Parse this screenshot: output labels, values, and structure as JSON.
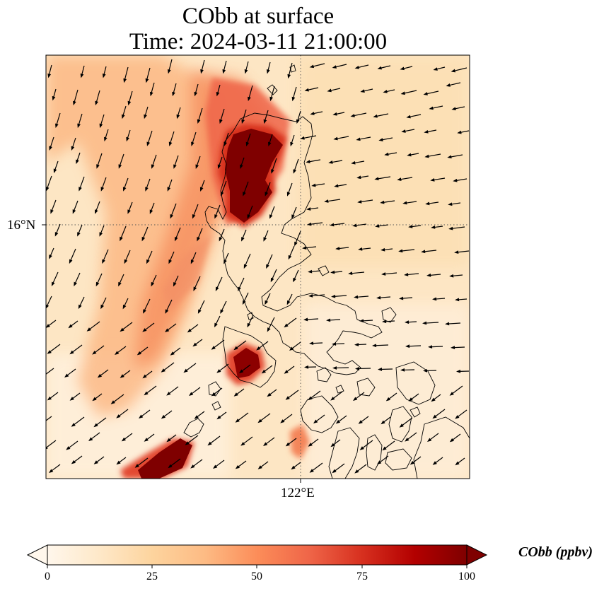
{
  "title": {
    "line1": "CObb at surface",
    "line2": "Time: 2024-03-11 21:00:00"
  },
  "map": {
    "variable": "CObb",
    "level": "surface",
    "gridlines": "dotted",
    "lat_labels": [
      "16°N"
    ],
    "lon_labels": [
      "122°E"
    ],
    "lat_grid_value": 16,
    "lon_grid_value": 122,
    "features": [
      "coastlines",
      "wind-vectors",
      "concentration-field"
    ]
  },
  "colorbar": {
    "label": "CObb (ppbv)",
    "min": 0,
    "max": 100,
    "ticks": [
      "0",
      "25",
      "50",
      "75",
      "100"
    ],
    "extend": "both",
    "colormap": "OrRd",
    "colors": [
      "#fff7ec",
      "#fee8c8",
      "#fdd49e",
      "#fdbb84",
      "#fc8d59",
      "#ef6548",
      "#d7301f",
      "#b30000",
      "#7f0000"
    ]
  }
}
